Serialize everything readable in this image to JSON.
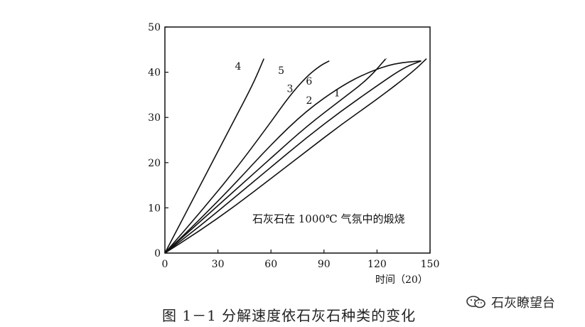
{
  "chart_data": {
    "type": "line",
    "xlim": [
      0,
      150
    ],
    "ylim": [
      0,
      50
    ],
    "x_ticks": [
      0,
      30,
      60,
      90,
      120,
      150
    ],
    "y_ticks": [
      0,
      10,
      20,
      30,
      40,
      50
    ],
    "x_tick_labels": [
      "0",
      "30",
      "60",
      "90",
      "120",
      "150"
    ],
    "y_tick_labels": [
      "0",
      "10",
      "20",
      "30",
      "40",
      "50"
    ],
    "xlabel": "时间（20）",
    "ylabel": "",
    "annotation": "石灰石在 1000℃ 气氛中的煅烧",
    "grid": false,
    "line_color": "#111111",
    "series": [
      {
        "name": "1",
        "x": [
          0,
          20,
          40,
          60,
          80,
          100,
          120,
          140,
          148
        ],
        "y": [
          0,
          5,
          10.5,
          16.5,
          22.5,
          28.5,
          34,
          40,
          43
        ]
      },
      {
        "name": "2",
        "x": [
          0,
          20,
          40,
          60,
          80,
          100,
          120,
          135,
          145
        ],
        "y": [
          0,
          6,
          12.5,
          19,
          25.5,
          31.5,
          37,
          41,
          42.5
        ]
      },
      {
        "name": "3",
        "x": [
          0,
          20,
          40,
          60,
          80,
          100,
          115,
          125
        ],
        "y": [
          0,
          7,
          14,
          21,
          28,
          34,
          38.5,
          43
        ]
      },
      {
        "name": "4",
        "x": [
          0,
          10,
          20,
          30,
          40,
          50,
          56
        ],
        "y": [
          0,
          7.5,
          15,
          22.5,
          30,
          37.5,
          43
        ]
      },
      {
        "name": "5",
        "x": [
          0,
          20,
          40,
          60,
          70,
          80,
          88,
          93
        ],
        "y": [
          0,
          9,
          18.5,
          29,
          34.5,
          39,
          41.5,
          42.5
        ]
      },
      {
        "name": "6",
        "x": [
          0,
          20,
          40,
          60,
          80,
          100,
          115,
          130,
          145
        ],
        "y": [
          0,
          7.5,
          15.5,
          24,
          31.5,
          37,
          40,
          42,
          42.5
        ]
      }
    ]
  },
  "caption": "图 1－1    分解速度依石灰石种类的变化",
  "watermark": {
    "text": "石灰瞭望台",
    "icon": "wechat-icon"
  }
}
